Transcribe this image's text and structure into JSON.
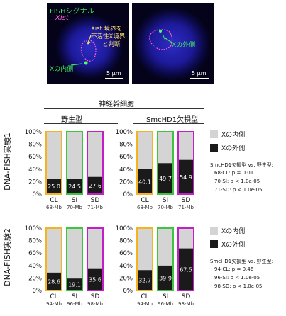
{
  "colors": {
    "cl": "#f5b324",
    "si": "#3fc43f",
    "sd": "#c21fc9",
    "inside": "#d4d4d4",
    "outside": "#1a1a1a",
    "fish_label": "#3ee65a",
    "xist_label": "#ff5bd6",
    "annotation": "#ffe27a"
  },
  "micrographs": {
    "left": {
      "fish_label": "FISHシグナル",
      "xist_label": "Xist",
      "boundary_note": [
        "Xist 境界を",
        "不活性X境界",
        "と判断"
      ],
      "inside_label": "Xの内側",
      "scale_bar": "5 µm"
    },
    "right": {
      "outside_label": "Xの外側",
      "scale_bar": "5 µm"
    }
  },
  "header": {
    "cell_type": "神経幹細胞",
    "col1": "野生型",
    "col2": "SmcHD1欠損型"
  },
  "legend": {
    "inside": "Xの内側",
    "outside": "Xの外側"
  },
  "y_ticks": [
    "100%",
    "80%",
    "60%",
    "40%",
    "20%",
    "0%"
  ],
  "stats": {
    "exp1": {
      "title": "SmcHD1欠損型 vs. 野生型:",
      "lines": [
        "68-CL:  p = 0.01",
        "70-SI:  p < 1.0e-05",
        "71-SD:  p < 1.0e-05"
      ]
    },
    "exp2": {
      "title": "SmcHD1欠損型 vs. 野生型:",
      "lines": [
        "94-CL:  p = 0.46",
        "96-SI:  p < 1.0e-05",
        "98-SD:  p < 1.0e-05"
      ]
    }
  },
  "chart_data": [
    {
      "type": "bar",
      "stacked": true,
      "row_label": "DNA-FISH実験1",
      "panel": "野生型",
      "categories": [
        "CL",
        "SI",
        "SD"
      ],
      "sublabels": [
        "68-Mb",
        "70-Mb",
        "71-Mb"
      ],
      "series": [
        {
          "name": "Xの外側",
          "values": [
            25.0,
            24.5,
            27.6
          ]
        },
        {
          "name": "Xの内側",
          "values": [
            75.0,
            75.5,
            72.4
          ]
        }
      ],
      "ylim": [
        0,
        100
      ]
    },
    {
      "type": "bar",
      "stacked": true,
      "row_label": "DNA-FISH実験1",
      "panel": "SmcHD1欠損型",
      "categories": [
        "CL",
        "SI",
        "SD"
      ],
      "sublabels": [
        "68-Mb",
        "70-Mb",
        "71-Mb"
      ],
      "series": [
        {
          "name": "Xの外側",
          "values": [
            40.1,
            49.7,
            54.9
          ]
        },
        {
          "name": "Xの内側",
          "values": [
            59.9,
            50.3,
            45.1
          ]
        }
      ],
      "ylim": [
        0,
        100
      ]
    },
    {
      "type": "bar",
      "stacked": true,
      "row_label": "DNA-FISH実験2",
      "panel": "野生型",
      "categories": [
        "CL",
        "SI",
        "SD"
      ],
      "sublabels": [
        "94-Mb",
        "96-Mb",
        "98-Mb"
      ],
      "series": [
        {
          "name": "Xの外側",
          "values": [
            28.6,
            19.1,
            35.6
          ]
        },
        {
          "name": "Xの内側",
          "values": [
            71.4,
            80.9,
            64.4
          ]
        }
      ],
      "ylim": [
        0,
        100
      ]
    },
    {
      "type": "bar",
      "stacked": true,
      "row_label": "DNA-FISH実験2",
      "panel": "SmcHD1欠損型",
      "categories": [
        "CL",
        "SI",
        "SD"
      ],
      "sublabels": [
        "94-Mb",
        "96-Mb",
        "98-Mb"
      ],
      "series": [
        {
          "name": "Xの外側",
          "values": [
            32.7,
            39.9,
            67.5
          ]
        },
        {
          "name": "Xの内側",
          "values": [
            67.3,
            60.1,
            32.5
          ]
        }
      ],
      "ylim": [
        0,
        100
      ]
    }
  ]
}
